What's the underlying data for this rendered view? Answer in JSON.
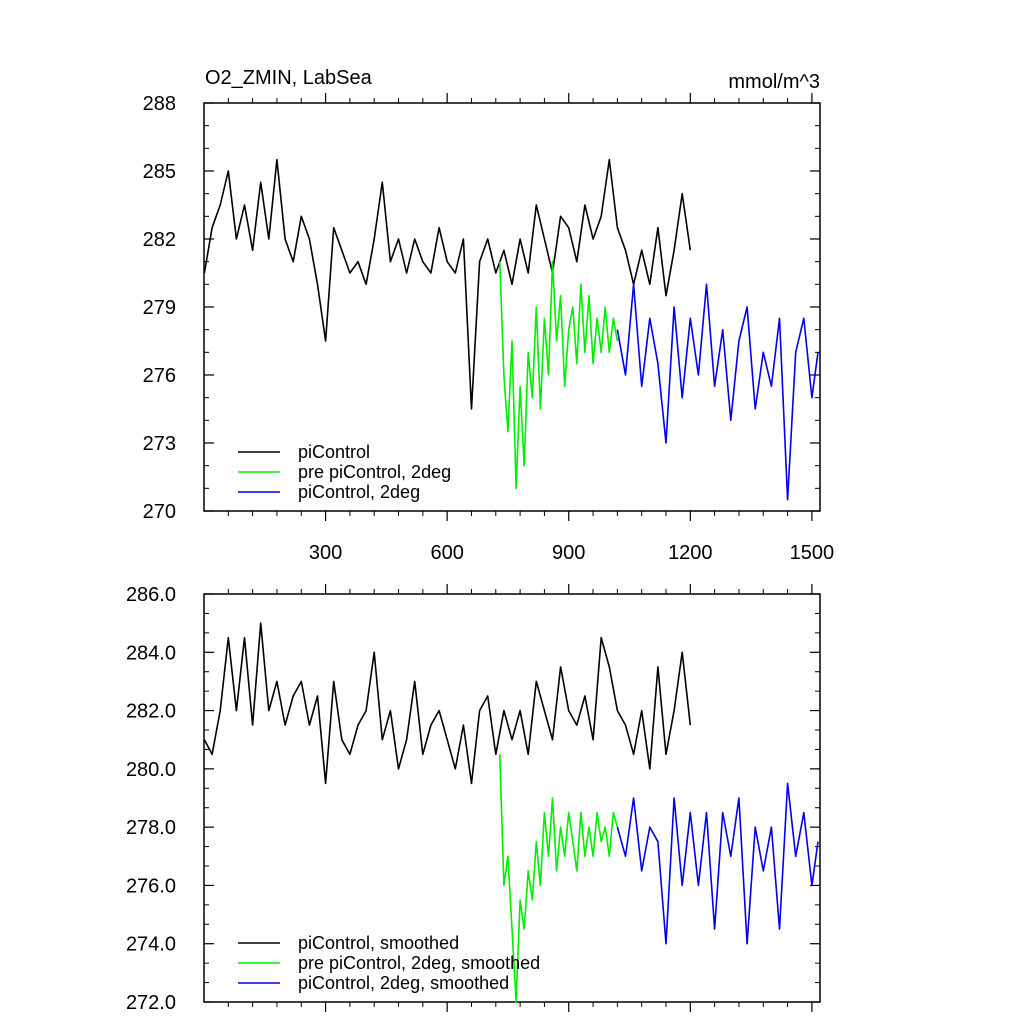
{
  "chart_data": [
    {
      "type": "line",
      "title_left": "O2_ZMIN, LabSea",
      "title_right": "mmol/m^3",
      "xlim": [
        0,
        1520
      ],
      "ylim": [
        270,
        288
      ],
      "xticks": [
        300,
        600,
        900,
        1200,
        1500
      ],
      "xtick_labels": [
        "300",
        "600",
        "900",
        "1200",
        "1500"
      ],
      "yticks": [
        270,
        273,
        276,
        279,
        282,
        285,
        288
      ],
      "ytick_labels": [
        "270",
        "273",
        "276",
        "279",
        "282",
        "285",
        "288"
      ],
      "grid": false,
      "legend_position": "bottom-left",
      "series": [
        {
          "name": "piControl",
          "color": "#000000",
          "x": [
            1,
            20,
            40,
            60,
            80,
            100,
            120,
            140,
            160,
            180,
            200,
            220,
            240,
            260,
            280,
            300,
            320,
            340,
            360,
            380,
            400,
            420,
            440,
            460,
            480,
            500,
            520,
            540,
            560,
            580,
            600,
            620,
            640,
            660,
            680,
            700,
            720,
            740,
            760,
            780,
            800,
            820,
            840,
            860,
            880,
            900,
            920,
            940,
            960,
            980,
            1000,
            1020,
            1040,
            1060,
            1080,
            1100,
            1120,
            1140,
            1160,
            1180,
            1200
          ],
          "y": [
            280.5,
            282.5,
            283.5,
            285.0,
            282.0,
            283.5,
            281.5,
            284.5,
            282.0,
            285.5,
            282.0,
            281.0,
            283.0,
            282.0,
            280.0,
            277.5,
            282.5,
            281.5,
            280.5,
            281.0,
            280.0,
            282.0,
            284.5,
            281.0,
            282.0,
            280.5,
            282.0,
            281.0,
            280.5,
            282.5,
            281.0,
            280.5,
            282.0,
            274.5,
            281.0,
            282.0,
            280.5,
            281.5,
            280.0,
            282.0,
            280.5,
            283.5,
            282.0,
            280.5,
            283.0,
            282.5,
            281.0,
            283.5,
            282.0,
            283.0,
            285.5,
            282.5,
            281.5,
            280.0,
            281.5,
            280.0,
            282.5,
            279.5,
            281.5,
            284.0,
            281.5
          ]
        },
        {
          "name": "pre piControl, 2deg",
          "color": "#00ee00",
          "x": [
            730,
            740,
            750,
            760,
            770,
            780,
            790,
            800,
            810,
            820,
            830,
            840,
            850,
            860,
            870,
            880,
            890,
            900,
            910,
            920,
            930,
            940,
            950,
            960,
            970,
            980,
            990,
            1000,
            1010,
            1020
          ],
          "y": [
            281.0,
            276.0,
            273.5,
            277.5,
            271.0,
            275.5,
            272.0,
            277.0,
            275.0,
            279.0,
            274.5,
            278.5,
            276.0,
            281.0,
            277.5,
            279.5,
            275.5,
            278.0,
            279.0,
            276.5,
            280.0,
            277.0,
            279.5,
            276.5,
            278.5,
            277.0,
            279.0,
            277.0,
            278.5,
            277.5
          ]
        },
        {
          "name": "piControl, 2deg",
          "color": "#0000ee",
          "x": [
            1020,
            1040,
            1060,
            1080,
            1100,
            1120,
            1140,
            1160,
            1180,
            1200,
            1220,
            1240,
            1260,
            1280,
            1300,
            1320,
            1340,
            1360,
            1380,
            1400,
            1420,
            1440,
            1460,
            1480,
            1500,
            1515
          ],
          "y": [
            278.0,
            276.0,
            280.0,
            275.5,
            278.5,
            276.5,
            273.0,
            279.0,
            275.0,
            278.5,
            276.0,
            280.0,
            275.5,
            278.0,
            274.0,
            277.5,
            279.0,
            274.5,
            277.0,
            275.5,
            278.5,
            270.5,
            277.0,
            278.5,
            275.0,
            277.0
          ]
        }
      ]
    },
    {
      "type": "line",
      "xlim": [
        0,
        1520
      ],
      "ylim": [
        272,
        286
      ],
      "xticks": [
        300,
        600,
        900,
        1200,
        1500
      ],
      "yticks": [
        272,
        274,
        276,
        278,
        280,
        282,
        284,
        286
      ],
      "ytick_labels": [
        "272.0",
        "274.0",
        "276.0",
        "278.0",
        "280.0",
        "282.0",
        "284.0",
        "286.0"
      ],
      "grid": false,
      "legend_position": "bottom-left",
      "series": [
        {
          "name": "piControl, smoothed",
          "color": "#000000",
          "x": [
            1,
            20,
            40,
            60,
            80,
            100,
            120,
            140,
            160,
            180,
            200,
            220,
            240,
            260,
            280,
            300,
            320,
            340,
            360,
            380,
            400,
            420,
            440,
            460,
            480,
            500,
            520,
            540,
            560,
            580,
            600,
            620,
            640,
            660,
            680,
            700,
            720,
            740,
            760,
            780,
            800,
            820,
            840,
            860,
            880,
            900,
            920,
            940,
            960,
            980,
            1000,
            1020,
            1040,
            1060,
            1080,
            1100,
            1120,
            1140,
            1160,
            1180,
            1200
          ],
          "y": [
            281.0,
            280.5,
            282.0,
            284.5,
            282.0,
            284.5,
            281.5,
            285.0,
            282.0,
            283.0,
            281.5,
            282.5,
            283.0,
            281.5,
            282.5,
            279.5,
            283.0,
            281.0,
            280.5,
            281.5,
            282.0,
            284.0,
            281.0,
            282.0,
            280.0,
            281.0,
            283.0,
            280.5,
            281.5,
            282.0,
            281.0,
            280.0,
            281.5,
            279.5,
            282.0,
            282.5,
            280.5,
            282.0,
            281.0,
            282.0,
            280.5,
            283.0,
            282.0,
            281.0,
            283.5,
            282.0,
            281.5,
            282.5,
            281.0,
            284.5,
            283.5,
            282.0,
            281.5,
            280.5,
            282.0,
            280.0,
            283.5,
            280.5,
            282.0,
            284.0,
            281.5
          ]
        },
        {
          "name": "pre piControl, 2deg, smoothed",
          "color": "#00ee00",
          "x": [
            730,
            740,
            750,
            760,
            770,
            780,
            790,
            800,
            810,
            820,
            830,
            840,
            850,
            860,
            870,
            880,
            890,
            900,
            910,
            920,
            930,
            940,
            950,
            960,
            970,
            980,
            990,
            1000,
            1010,
            1020
          ],
          "y": [
            280.5,
            276.0,
            277.0,
            274.5,
            272.0,
            275.5,
            274.5,
            276.5,
            275.5,
            277.5,
            276.0,
            278.5,
            277.0,
            279.0,
            276.5,
            278.0,
            277.0,
            278.5,
            277.5,
            276.5,
            278.5,
            277.0,
            278.0,
            277.0,
            278.5,
            277.5,
            278.0,
            277.0,
            278.5,
            278.0
          ]
        },
        {
          "name": "piControl, 2deg, smoothed",
          "color": "#0000ee",
          "x": [
            1020,
            1040,
            1060,
            1080,
            1100,
            1120,
            1140,
            1160,
            1180,
            1200,
            1220,
            1240,
            1260,
            1280,
            1300,
            1320,
            1340,
            1360,
            1380,
            1400,
            1420,
            1440,
            1460,
            1480,
            1500,
            1515
          ],
          "y": [
            278.0,
            277.0,
            279.0,
            276.5,
            278.0,
            277.5,
            274.0,
            279.0,
            276.0,
            278.5,
            276.0,
            278.5,
            274.5,
            278.5,
            277.0,
            279.0,
            274.0,
            278.0,
            276.5,
            278.0,
            274.5,
            279.5,
            277.0,
            278.5,
            276.0,
            277.5
          ]
        }
      ]
    }
  ]
}
